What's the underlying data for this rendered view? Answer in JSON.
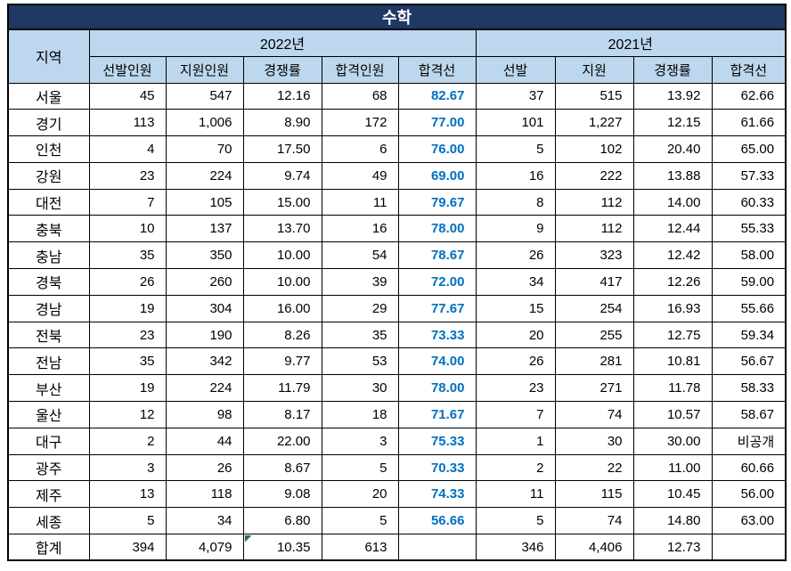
{
  "title": "수학",
  "header": {
    "region": "지역",
    "year2022": "2022년",
    "year2021": "2021년",
    "cols2022": [
      "선발인원",
      "지원인원",
      "경쟁률",
      "합격인원",
      "합격선"
    ],
    "cols2021": [
      "선발",
      "지원",
      "경쟁률",
      "합격선"
    ]
  },
  "colors": {
    "title_bg": "#1f3864",
    "header_bg": "#bdd7ee",
    "cutoff_text": "#0070c0",
    "grid": "#000000",
    "error_indicator": "#217346"
  },
  "rows": [
    {
      "region": "서울",
      "y2022": [
        "45",
        "547",
        "12.16",
        "68",
        "82.67"
      ],
      "y2021": [
        "37",
        "515",
        "13.92",
        "62.66"
      ]
    },
    {
      "region": "경기",
      "y2022": [
        "113",
        "1,006",
        "8.90",
        "172",
        "77.00"
      ],
      "y2021": [
        "101",
        "1,227",
        "12.15",
        "61.66"
      ]
    },
    {
      "region": "인천",
      "y2022": [
        "4",
        "70",
        "17.50",
        "6",
        "76.00"
      ],
      "y2021": [
        "5",
        "102",
        "20.40",
        "65.00"
      ]
    },
    {
      "region": "강원",
      "y2022": [
        "23",
        "224",
        "9.74",
        "49",
        "69.00"
      ],
      "y2021": [
        "16",
        "222",
        "13.88",
        "57.33"
      ]
    },
    {
      "region": "대전",
      "y2022": [
        "7",
        "105",
        "15.00",
        "11",
        "79.67"
      ],
      "y2021": [
        "8",
        "112",
        "14.00",
        "60.33"
      ]
    },
    {
      "region": "충북",
      "y2022": [
        "10",
        "137",
        "13.70",
        "16",
        "78.00"
      ],
      "y2021": [
        "9",
        "112",
        "12.44",
        "55.33"
      ]
    },
    {
      "region": "충남",
      "y2022": [
        "35",
        "350",
        "10.00",
        "54",
        "78.67"
      ],
      "y2021": [
        "26",
        "323",
        "12.42",
        "58.00"
      ]
    },
    {
      "region": "경북",
      "y2022": [
        "26",
        "260",
        "10.00",
        "39",
        "72.00"
      ],
      "y2021": [
        "34",
        "417",
        "12.26",
        "59.00"
      ]
    },
    {
      "region": "경남",
      "y2022": [
        "19",
        "304",
        "16.00",
        "29",
        "77.67"
      ],
      "y2021": [
        "15",
        "254",
        "16.93",
        "55.66"
      ]
    },
    {
      "region": "전북",
      "y2022": [
        "23",
        "190",
        "8.26",
        "35",
        "73.33"
      ],
      "y2021": [
        "20",
        "255",
        "12.75",
        "59.34"
      ]
    },
    {
      "region": "전남",
      "y2022": [
        "35",
        "342",
        "9.77",
        "53",
        "74.00"
      ],
      "y2021": [
        "26",
        "281",
        "10.81",
        "56.67"
      ]
    },
    {
      "region": "부산",
      "y2022": [
        "19",
        "224",
        "11.79",
        "30",
        "78.00"
      ],
      "y2021": [
        "23",
        "271",
        "11.78",
        "58.33"
      ]
    },
    {
      "region": "울산",
      "y2022": [
        "12",
        "98",
        "8.17",
        "18",
        "71.67"
      ],
      "y2021": [
        "7",
        "74",
        "10.57",
        "58.67"
      ]
    },
    {
      "region": "대구",
      "y2022": [
        "2",
        "44",
        "22.00",
        "3",
        "75.33"
      ],
      "y2021": [
        "1",
        "30",
        "30.00",
        "비공개"
      ]
    },
    {
      "region": "광주",
      "y2022": [
        "3",
        "26",
        "8.67",
        "5",
        "70.33"
      ],
      "y2021": [
        "2",
        "22",
        "11.00",
        "60.66"
      ]
    },
    {
      "region": "제주",
      "y2022": [
        "13",
        "118",
        "9.08",
        "20",
        "74.33"
      ],
      "y2021": [
        "11",
        "115",
        "10.45",
        "56.00"
      ]
    },
    {
      "region": "세종",
      "y2022": [
        "5",
        "34",
        "6.80",
        "5",
        "56.66"
      ],
      "y2021": [
        "5",
        "74",
        "14.80",
        "63.00"
      ]
    }
  ],
  "total": {
    "region": "합계",
    "y2022": [
      "394",
      "4,079",
      "10.35",
      "613",
      ""
    ],
    "y2021": [
      "346",
      "4,406",
      "12.73",
      ""
    ],
    "error_indicator_col2022": 2
  }
}
